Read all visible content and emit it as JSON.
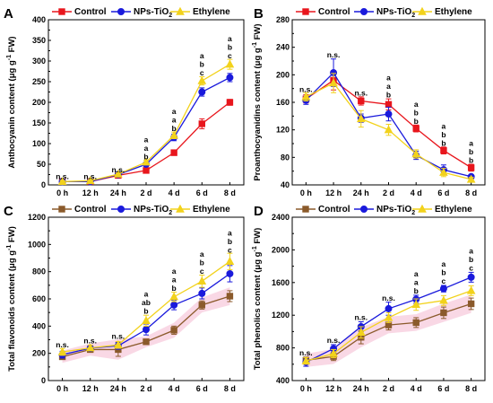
{
  "chart_data": [
    {
      "panel": "A",
      "type": "line",
      "categories": [
        "0 h",
        "12 h",
        "24 h",
        "2 d",
        "4 d",
        "6 d",
        "8 d"
      ],
      "ylabel_main": "Anthocyanin content (μg g",
      "ylabel_sup": "-1",
      "ylabel_tail": " FW)",
      "ylim": [
        0,
        400
      ],
      "yticks": [
        "0",
        "50",
        "100",
        "150",
        "200",
        "250",
        "300",
        "350",
        "400"
      ],
      "legend": [
        {
          "label": "Control",
          "sub": ""
        },
        {
          "label": "NPs-TiO",
          "sub": "2"
        },
        {
          "label": "Ethylene",
          "sub": ""
        }
      ],
      "series": [
        {
          "values": [
            8,
            8,
            23,
            35,
            78,
            148,
            200
          ],
          "err": [
            3,
            3,
            3,
            4,
            6,
            12,
            7
          ]
        },
        {
          "values": [
            8,
            8,
            25,
            50,
            115,
            225,
            260
          ],
          "err": [
            3,
            3,
            3,
            5,
            8,
            10,
            10
          ]
        },
        {
          "values": [
            8,
            10,
            26,
            55,
            120,
            252,
            292
          ],
          "err": [
            3,
            3,
            3,
            5,
            8,
            10,
            12
          ]
        }
      ],
      "annotations": [
        {
          "x": 0,
          "y": 14,
          "lines": [
            "n.s."
          ]
        },
        {
          "x": 1,
          "y": 14,
          "lines": [
            "n.s."
          ]
        },
        {
          "x": 2,
          "y": 30,
          "lines": [
            "n.s."
          ]
        },
        {
          "x": 3,
          "y": 62,
          "lines": [
            "a",
            "a",
            "b"
          ]
        },
        {
          "x": 4,
          "y": 130,
          "lines": [
            "a",
            "a",
            "b"
          ]
        },
        {
          "x": 5,
          "y": 265,
          "lines": [
            "a",
            "b",
            "c"
          ]
        },
        {
          "x": 6,
          "y": 306,
          "lines": [
            "a",
            "b",
            "c"
          ]
        }
      ]
    },
    {
      "panel": "B",
      "type": "line",
      "categories": [
        "0 h",
        "12 h",
        "24 h",
        "2 d",
        "4 d",
        "6 d",
        "8 d"
      ],
      "ylabel_main": "Proanthocyanidins content (μg g",
      "ylabel_sup": "-1",
      "ylabel_tail": " FW)",
      "ylim": [
        40,
        280
      ],
      "yticks": [
        "40",
        "80",
        "120",
        "160",
        "200",
        "240",
        "280"
      ],
      "legend": [
        {
          "label": "Control",
          "sub": ""
        },
        {
          "label": "NPs-TiO",
          "sub": "2"
        },
        {
          "label": "Ethylene",
          "sub": ""
        }
      ],
      "series": [
        {
          "values": [
            165,
            192,
            162,
            157,
            122,
            90,
            65
          ],
          "err": [
            6,
            14,
            6,
            8,
            5,
            5,
            5
          ]
        },
        {
          "values": [
            163,
            203,
            137,
            143,
            83,
            62,
            52
          ],
          "err": [
            6,
            20,
            6,
            10,
            6,
            7,
            3
          ]
        },
        {
          "values": [
            168,
            188,
            136,
            120,
            85,
            58,
            48
          ],
          "err": [
            6,
            14,
            12,
            8,
            6,
            6,
            3
          ]
        }
      ],
      "annotations": [
        {
          "x": 0,
          "y": 175,
          "lines": [
            "n.s."
          ]
        },
        {
          "x": 1,
          "y": 225,
          "lines": [
            "n.s."
          ]
        },
        {
          "x": 2,
          "y": 170,
          "lines": [
            "n.s."
          ]
        },
        {
          "x": 3,
          "y": 167,
          "lines": [
            "a",
            "a",
            "b"
          ]
        },
        {
          "x": 4,
          "y": 129,
          "lines": [
            "a",
            "b",
            "b"
          ]
        },
        {
          "x": 5,
          "y": 97,
          "lines": [
            "a",
            "b",
            "b"
          ]
        },
        {
          "x": 6,
          "y": 72,
          "lines": [
            "a",
            "b",
            "b"
          ]
        }
      ]
    },
    {
      "panel": "C",
      "type": "line",
      "categories": [
        "0 h",
        "12 h",
        "24 h",
        "2 d",
        "4 d",
        "6 d",
        "8 d"
      ],
      "ylabel_main": "Total flavonoids content (μg g",
      "ylabel_sup": "-1",
      "ylabel_tail": " FW)",
      "ylim": [
        0,
        1200
      ],
      "yticks": [
        "0",
        "200",
        "400",
        "600",
        "800",
        "1000",
        "1200"
      ],
      "legend": [
        {
          "label": "Control",
          "sub": ""
        },
        {
          "label": "NPs-TiO",
          "sub": "2"
        },
        {
          "label": "Ethylene",
          "sub": ""
        }
      ],
      "series": [
        {
          "values": [
            175,
            228,
            228,
            285,
            370,
            555,
            620
          ],
          "err": [
            20,
            20,
            50,
            15,
            30,
            30,
            40
          ]
        },
        {
          "values": [
            190,
            238,
            255,
            375,
            555,
            640,
            785
          ],
          "err": [
            25,
            20,
            25,
            40,
            35,
            40,
            60
          ]
        },
        {
          "values": [
            210,
            240,
            262,
            440,
            615,
            730,
            875
          ],
          "err": [
            25,
            20,
            25,
            40,
            35,
            45,
            60
          ]
        }
      ],
      "annotations": [
        {
          "x": 0,
          "y": 245,
          "lines": [
            "n.s."
          ]
        },
        {
          "x": 1,
          "y": 275,
          "lines": [
            "n.s."
          ]
        },
        {
          "x": 2,
          "y": 305,
          "lines": [
            "n.s."
          ]
        },
        {
          "x": 3,
          "y": 490,
          "lines": [
            "a",
            "ab",
            "b"
          ]
        },
        {
          "x": 4,
          "y": 660,
          "lines": [
            "a",
            "a",
            "b"
          ]
        },
        {
          "x": 5,
          "y": 785,
          "lines": [
            "a",
            "b",
            "c"
          ]
        },
        {
          "x": 6,
          "y": 940,
          "lines": [
            "a",
            "b",
            "c"
          ]
        }
      ]
    },
    {
      "panel": "D",
      "type": "line",
      "categories": [
        "0 h",
        "12 h",
        "24 h",
        "2 d",
        "4 d",
        "6 d",
        "8 d"
      ],
      "ylabel_main": "Total phenolics content (μg g",
      "ylabel_sup": "-1",
      "ylabel_tail": " FW)",
      "ylim": [
        400,
        2400
      ],
      "yticks": [
        "400",
        "800",
        "1200",
        "1600",
        "2000",
        "2400"
      ],
      "legend": [
        {
          "label": "Control",
          "sub": ""
        },
        {
          "label": "NPs-TiO",
          "sub": "2"
        },
        {
          "label": "Ethylene",
          "sub": ""
        }
      ],
      "series": [
        {
          "values": [
            648,
            695,
            930,
            1080,
            1110,
            1230,
            1340
          ],
          "err": [
            40,
            50,
            80,
            60,
            60,
            70,
            70
          ]
        },
        {
          "values": [
            625,
            790,
            1060,
            1280,
            1395,
            1525,
            1665
          ],
          "err": [
            50,
            50,
            60,
            80,
            50,
            40,
            60
          ]
        },
        {
          "values": [
            640,
            730,
            990,
            1170,
            1330,
            1380,
            1500
          ],
          "err": [
            40,
            50,
            70,
            60,
            70,
            60,
            60
          ]
        }
      ],
      "annotations": [
        {
          "x": 0,
          "y": 710,
          "lines": [
            "n.s."
          ]
        },
        {
          "x": 1,
          "y": 860,
          "lines": [
            "n.s."
          ]
        },
        {
          "x": 2,
          "y": 1140,
          "lines": [
            "n.s."
          ]
        },
        {
          "x": 3,
          "y": 1380,
          "lines": [
            "n.s."
          ]
        },
        {
          "x": 4,
          "y": 1465,
          "lines": [
            "a",
            "a",
            "b"
          ]
        },
        {
          "x": 5,
          "y": 1585,
          "lines": [
            "a",
            "b",
            "c"
          ]
        },
        {
          "x": 6,
          "y": 1745,
          "lines": [
            "a",
            "b",
            "c"
          ]
        }
      ]
    }
  ],
  "styles": {
    "panels_top": {
      "colors": [
        "#e8161d",
        "#1a1adc",
        "#f2d21c"
      ],
      "markers": [
        "square",
        "circle",
        "triangle"
      ],
      "band_color": ""
    },
    "panels_bottom": {
      "colors": [
        "#8b5a2b",
        "#1a1adc",
        "#f2d21c"
      ],
      "markers": [
        "square",
        "circle",
        "triangle"
      ],
      "band_color": "#f4b8cf"
    }
  }
}
